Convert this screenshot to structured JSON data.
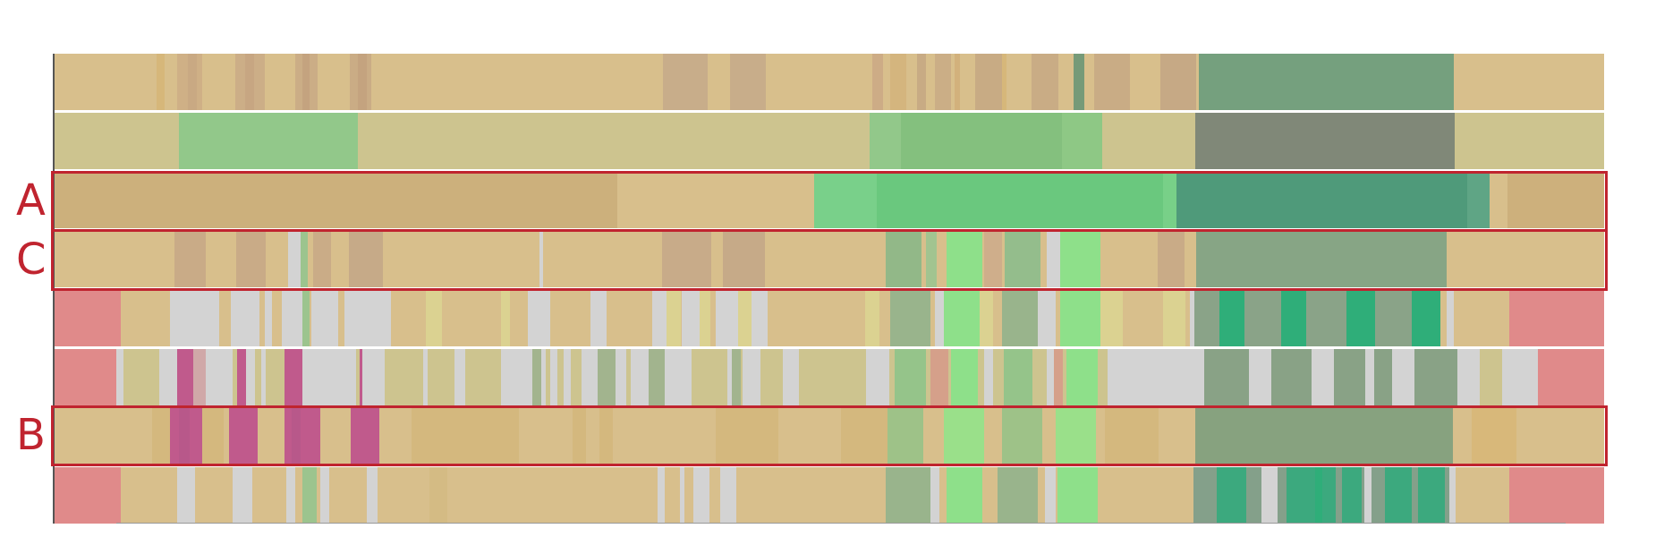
{
  "row_labels": {
    "a": "A",
    "b": "B",
    "c": "C"
  },
  "colors": {
    "highlight": "#c0242f",
    "tan": "#d8bf8c",
    "khaki": "#cdc48f",
    "grey": "#d3d3d3",
    "pink": "#e08a8a",
    "magenta": "#c05a8c",
    "green_light": "#8ed88e",
    "green_mid": "#6cc87c",
    "green_dark": "#4f9a7a",
    "sage": "#7a9c80",
    "slate": "#808878"
  },
  "tracks": [
    {
      "id": "track-1",
      "segments": [
        [
          0,
          1733,
          "#d8bf8c"
        ],
        [
          115,
          9,
          "#d6b77a"
        ],
        [
          138,
          28,
          "#cfb086"
        ],
        [
          150,
          10,
          "#c9a983"
        ],
        [
          203,
          33,
          "#ccae87"
        ],
        [
          214,
          10,
          "#c7a682"
        ],
        [
          270,
          25,
          "#cbad86"
        ],
        [
          278,
          8,
          "#c4a37f"
        ],
        [
          331,
          24,
          "#caac85"
        ],
        [
          340,
          10,
          "#c4a37f"
        ],
        [
          681,
          50,
          "#c8ad8a"
        ],
        [
          756,
          40,
          "#c8ad8a"
        ],
        [
          915,
          12,
          "#cdac86"
        ],
        [
          935,
          18,
          "#d4b57e"
        ],
        [
          965,
          10,
          "#c8ab84"
        ],
        [
          985,
          18,
          "#cbae86"
        ],
        [
          1007,
          6,
          "#d2b17c"
        ],
        [
          1030,
          30,
          "#c8ab84"
        ],
        [
          1060,
          5,
          "#d6b77a"
        ],
        [
          1093,
          30,
          "#c9ac85"
        ],
        [
          1140,
          12,
          "#769a78"
        ],
        [
          1163,
          40,
          "#c9ac85"
        ],
        [
          1237,
          40,
          "#c6a985"
        ],
        [
          1280,
          285,
          "#75a07e"
        ]
      ]
    },
    {
      "id": "track-2",
      "segments": [
        [
          0,
          1733,
          "#cdc48f"
        ],
        [
          140,
          200,
          "#92c88a"
        ],
        [
          912,
          35,
          "#92c88a"
        ],
        [
          947,
          180,
          "#84c07e"
        ],
        [
          1127,
          45,
          "#8ec885"
        ],
        [
          1276,
          290,
          "#808878"
        ]
      ]
    },
    {
      "id": "track-3",
      "segments": [
        [
          0,
          1733,
          "#d8bf8c"
        ],
        [
          0,
          630,
          "#ccb07c"
        ],
        [
          850,
          70,
          "#79d08a"
        ],
        [
          920,
          320,
          "#6ac87e"
        ],
        [
          1240,
          15,
          "#78d088"
        ],
        [
          1255,
          325,
          "#4f9a7a"
        ],
        [
          1580,
          25,
          "#5fa585"
        ],
        [
          1625,
          110,
          "#cdb07c"
        ]
      ]
    },
    {
      "id": "track-4",
      "segments": [
        [
          0,
          1733,
          "#d8bf8c"
        ],
        [
          135,
          35,
          "#c9ab87"
        ],
        [
          204,
          33,
          "#c9ab87"
        ],
        [
          262,
          14,
          "#d3d3d3"
        ],
        [
          276,
          8,
          "#9cc48e"
        ],
        [
          290,
          20,
          "#caac87"
        ],
        [
          330,
          38,
          "#c6aa88"
        ],
        [
          543,
          4,
          "#d3d3d3"
        ],
        [
          680,
          55,
          "#c8ab89"
        ],
        [
          748,
          47,
          "#c6aa88"
        ],
        [
          930,
          40,
          "#92b888"
        ],
        [
          975,
          12,
          "#a2c490"
        ],
        [
          998,
          40,
          "#8ee08a"
        ],
        [
          1040,
          20,
          "#cfae8b"
        ],
        [
          1063,
          40,
          "#94bd8c"
        ],
        [
          1110,
          15,
          "#d3d3d3"
        ],
        [
          1125,
          45,
          "#8ee08a"
        ],
        [
          1234,
          30,
          "#c9ab87"
        ],
        [
          1277,
          280,
          "#87a585"
        ]
      ]
    },
    {
      "id": "track-5",
      "segments": [
        [
          0,
          1733,
          "#d8bf8c"
        ],
        [
          0,
          75,
          "#e08a8a"
        ],
        [
          130,
          55,
          "#d3d3d3"
        ],
        [
          198,
          32,
          "#d3d3d3"
        ],
        [
          236,
          8,
          "#d3d3d3"
        ],
        [
          255,
          25,
          "#d3d3d3"
        ],
        [
          278,
          8,
          "#9cc48e"
        ],
        [
          288,
          30,
          "#d3d3d3"
        ],
        [
          325,
          52,
          "#d3d3d3"
        ],
        [
          416,
          18,
          "#dbd291"
        ],
        [
          500,
          10,
          "#dbd291"
        ],
        [
          530,
          25,
          "#d3d3d3"
        ],
        [
          600,
          18,
          "#d3d3d3"
        ],
        [
          669,
          16,
          "#d3d3d3"
        ],
        [
          685,
          16,
          "#dbd291"
        ],
        [
          702,
          20,
          "#d3d3d3"
        ],
        [
          722,
          12,
          "#dbd291"
        ],
        [
          740,
          25,
          "#d3d3d3"
        ],
        [
          765,
          15,
          "#dbd291"
        ],
        [
          780,
          18,
          "#d3d3d3"
        ],
        [
          907,
          16,
          "#dbd291"
        ],
        [
          935,
          45,
          "#99b48c"
        ],
        [
          985,
          10,
          "#d3d3d3"
        ],
        [
          995,
          40,
          "#8ee08a"
        ],
        [
          1035,
          15,
          "#dbd291"
        ],
        [
          1060,
          40,
          "#99b48c"
        ],
        [
          1100,
          20,
          "#d3d3d3"
        ],
        [
          1125,
          45,
          "#8ee08a"
        ],
        [
          1170,
          25,
          "#dbd291"
        ],
        [
          1240,
          25,
          "#dbd291"
        ],
        [
          1270,
          5,
          "#d3d3d3"
        ],
        [
          1275,
          270,
          "#8aa388"
        ],
        [
          1303,
          28,
          "#2fae79"
        ],
        [
          1372,
          28,
          "#2fae79"
        ],
        [
          1445,
          32,
          "#2fae79"
        ],
        [
          1518,
          32,
          "#2fae79"
        ],
        [
          1557,
          8,
          "#d3d3d3"
        ],
        [
          1627,
          106,
          "#e08a8a"
        ]
      ]
    },
    {
      "id": "track-6",
      "segments": [
        [
          0,
          1733,
          "#cdc48f"
        ],
        [
          0,
          70,
          "#e08a8a"
        ],
        [
          70,
          8,
          "#d3d3d3"
        ],
        [
          118,
          20,
          "#d3d3d3"
        ],
        [
          138,
          18,
          "#c05a8c"
        ],
        [
          156,
          14,
          "#d0a8a8"
        ],
        [
          170,
          30,
          "#d3d3d3"
        ],
        [
          205,
          10,
          "#c05a8c"
        ],
        [
          215,
          10,
          "#d3d3d3"
        ],
        [
          232,
          5,
          "#d3d3d3"
        ],
        [
          258,
          20,
          "#c05a8c"
        ],
        [
          278,
          60,
          "#d3d3d3"
        ],
        [
          342,
          3,
          "#c05a8c"
        ],
        [
          345,
          25,
          "#d3d3d3"
        ],
        [
          413,
          5,
          "#d3d3d3"
        ],
        [
          448,
          12,
          "#d3d3d3"
        ],
        [
          500,
          35,
          "#d3d3d3"
        ],
        [
          535,
          10,
          "#a2b48e"
        ],
        [
          545,
          5,
          "#d3d3d3"
        ],
        [
          555,
          8,
          "#d3d3d3"
        ],
        [
          570,
          8,
          "#d3d3d3"
        ],
        [
          590,
          18,
          "#d3d3d3"
        ],
        [
          608,
          20,
          "#a2b48e"
        ],
        [
          628,
          12,
          "#d3d3d3"
        ],
        [
          645,
          20,
          "#d3d3d3"
        ],
        [
          665,
          18,
          "#a2b48e"
        ],
        [
          683,
          30,
          "#d3d3d3"
        ],
        [
          753,
          5,
          "#d3d3d3"
        ],
        [
          758,
          10,
          "#a2b48e"
        ],
        [
          770,
          20,
          "#d3d3d3"
        ],
        [
          815,
          18,
          "#d3d3d3"
        ],
        [
          908,
          26,
          "#d3d3d3"
        ],
        [
          940,
          35,
          "#95c48a"
        ],
        [
          980,
          20,
          "#d5a08a"
        ],
        [
          1003,
          30,
          "#8ee08a"
        ],
        [
          1040,
          10,
          "#d3d3d3"
        ],
        [
          1062,
          32,
          "#95c48a"
        ],
        [
          1110,
          8,
          "#d3d3d3"
        ],
        [
          1118,
          10,
          "#d5a08a"
        ],
        [
          1132,
          35,
          "#8ee08a"
        ],
        [
          1178,
          108,
          "#d3d3d3"
        ],
        [
          1286,
          50,
          "#89a286"
        ],
        [
          1336,
          25,
          "#d3d3d3"
        ],
        [
          1361,
          45,
          "#89a286"
        ],
        [
          1406,
          25,
          "#d3d3d3"
        ],
        [
          1431,
          35,
          "#89a286"
        ],
        [
          1466,
          10,
          "#d3d3d3"
        ],
        [
          1476,
          20,
          "#89a286"
        ],
        [
          1496,
          25,
          "#d3d3d3"
        ],
        [
          1521,
          48,
          "#89a286"
        ],
        [
          1569,
          25,
          "#d3d3d3"
        ],
        [
          1619,
          40,
          "#d3d3d3"
        ],
        [
          1659,
          74,
          "#e08a8a"
        ]
      ]
    },
    {
      "id": "track-7",
      "segments": [
        [
          0,
          1733,
          "#d8bf8c"
        ],
        [
          110,
          80,
          "#d4b87e"
        ],
        [
          130,
          36,
          "#c05a8c"
        ],
        [
          140,
          12,
          "#b8588a"
        ],
        [
          196,
          32,
          "#c05a8c"
        ],
        [
          258,
          40,
          "#c05a8c"
        ],
        [
          266,
          10,
          "#b8588a"
        ],
        [
          332,
          32,
          "#c05a8c"
        ],
        [
          400,
          120,
          "#d4b87e"
        ],
        [
          580,
          15,
          "#d4b87e"
        ],
        [
          610,
          15,
          "#d4b87e"
        ],
        [
          740,
          70,
          "#d4b87e"
        ],
        [
          880,
          65,
          "#d4b87e"
        ],
        [
          932,
          40,
          "#9ec288"
        ],
        [
          995,
          45,
          "#9ae08a"
        ],
        [
          1060,
          45,
          "#9ec288"
        ],
        [
          1120,
          45,
          "#9ae08a"
        ],
        [
          1175,
          60,
          "#d4b87e"
        ],
        [
          1276,
          288,
          "#87a27f"
        ],
        [
          1585,
          50,
          "#d8b87a"
        ]
      ]
    },
    {
      "id": "track-8",
      "segments": [
        [
          0,
          1733,
          "#d8bf8c"
        ],
        [
          0,
          75,
          "#e08a8a"
        ],
        [
          138,
          20,
          "#d3d3d3"
        ],
        [
          200,
          22,
          "#d3d3d3"
        ],
        [
          260,
          10,
          "#d3d3d3"
        ],
        [
          278,
          16,
          "#9cc48e"
        ],
        [
          298,
          10,
          "#d3d3d3"
        ],
        [
          350,
          12,
          "#d3d3d3"
        ],
        [
          420,
          20,
          "#d4bb84"
        ],
        [
          675,
          8,
          "#d3d3d3"
        ],
        [
          700,
          5,
          "#d3d3d3"
        ],
        [
          715,
          18,
          "#d3d3d3"
        ],
        [
          745,
          18,
          "#d3d3d3"
        ],
        [
          930,
          50,
          "#99b48c"
        ],
        [
          980,
          10,
          "#d3d3d3"
        ],
        [
          998,
          40,
          "#8ee08a"
        ],
        [
          1055,
          45,
          "#99b48c"
        ],
        [
          1108,
          12,
          "#d3d3d3"
        ],
        [
          1122,
          45,
          "#8ee08a"
        ],
        [
          1274,
          290,
          "#84a08a"
        ],
        [
          1300,
          33,
          "#3ca97e"
        ],
        [
          1350,
          18,
          "#d3d3d3"
        ],
        [
          1378,
          55,
          "#3ca97e"
        ],
        [
          1410,
          8,
          "#2fae79"
        ],
        [
          1440,
          22,
          "#3ca97e"
        ],
        [
          1465,
          8,
          "#d3d3d3"
        ],
        [
          1488,
          30,
          "#3ca97e"
        ],
        [
          1525,
          30,
          "#3ca97e"
        ],
        [
          1560,
          7,
          "#d3d3d3"
        ],
        [
          1627,
          106,
          "#e08a8a"
        ]
      ]
    }
  ]
}
